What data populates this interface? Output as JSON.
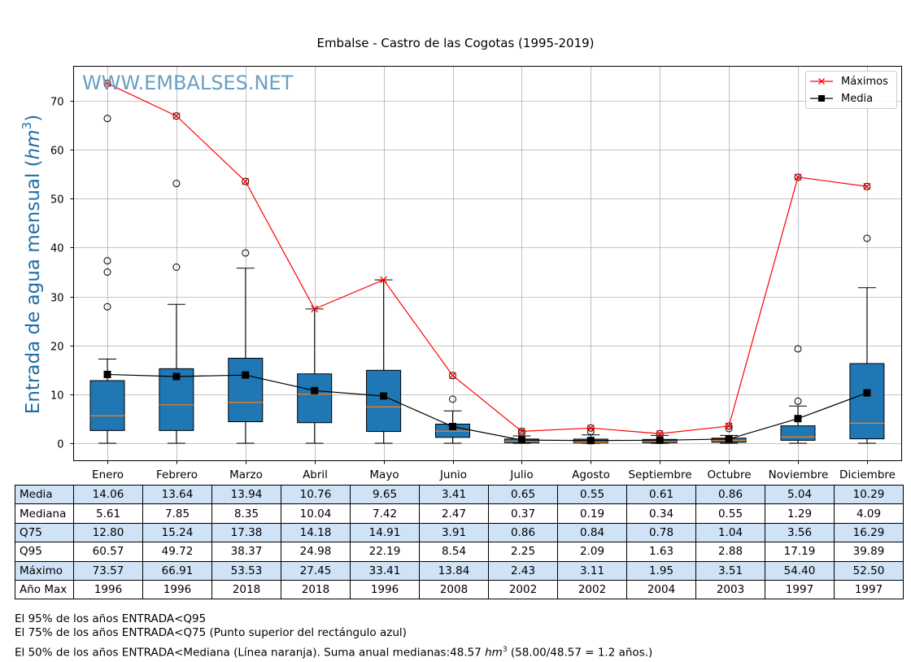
{
  "title": "Embalse - Castro de las Cogotas (1995-2019)",
  "watermark": "WWW.EMBALSES.NET",
  "colors": {
    "box_fill": "#1f77b4",
    "median_line": "#ff7f0e",
    "maximos": "#ff0000",
    "media": "#000000",
    "watermark": "#6a9fc2",
    "ylabel": "#1f6fa6",
    "table_shade": "#d0e2f5"
  },
  "chart_data": {
    "type": "box",
    "title": "Embalse - Castro de las Cogotas (1995-2019)",
    "ylabel": "Entrada de agua mensual (hm3)",
    "ylabel_text": "Entrada de agua mensual (",
    "ylabel_unit": "hm",
    "ylabel_exp": "3",
    "ylabel_close": ")",
    "ylim": [
      -3.7,
      77
    ],
    "yticks": [
      0,
      10,
      20,
      30,
      40,
      50,
      60,
      70
    ],
    "grid": true,
    "legend_position": "top-right",
    "categories": [
      "Enero",
      "Febrero",
      "Marzo",
      "Abril",
      "Mayo",
      "Junio",
      "Julio",
      "Agosto",
      "Septiembre",
      "Octubre",
      "Noviembre",
      "Diciembre"
    ],
    "legend": [
      {
        "name": "Máximos",
        "marker": "x"
      },
      {
        "name": "Media",
        "marker": "square"
      }
    ],
    "series": [
      {
        "name": "Máximos",
        "values": [
          73.57,
          66.91,
          53.53,
          27.45,
          33.41,
          13.84,
          2.43,
          3.11,
          1.95,
          3.51,
          54.4,
          52.5
        ]
      },
      {
        "name": "Media",
        "values": [
          14.06,
          13.64,
          13.94,
          10.76,
          9.65,
          3.41,
          0.65,
          0.55,
          0.61,
          0.86,
          5.04,
          10.29
        ]
      }
    ],
    "boxes": [
      {
        "q1": 2.6,
        "median": 5.61,
        "q3": 12.8,
        "whisker_low": 0,
        "whisker_high": 17.2,
        "outliers": [
          27.9,
          35.0,
          37.3,
          66.4,
          73.57
        ]
      },
      {
        "q1": 2.6,
        "median": 7.85,
        "q3": 15.24,
        "whisker_low": 0,
        "whisker_high": 28.4,
        "outliers": [
          36.0,
          53.1,
          66.91
        ]
      },
      {
        "q1": 4.4,
        "median": 8.35,
        "q3": 17.38,
        "whisker_low": 0,
        "whisker_high": 35.8,
        "outliers": [
          38.9,
          53.53
        ]
      },
      {
        "q1": 4.2,
        "median": 10.04,
        "q3": 14.18,
        "whisker_low": 0,
        "whisker_high": 27.45,
        "outliers": []
      },
      {
        "q1": 2.4,
        "median": 7.42,
        "q3": 14.91,
        "whisker_low": 0,
        "whisker_high": 33.41,
        "outliers": []
      },
      {
        "q1": 1.2,
        "median": 2.47,
        "q3": 3.91,
        "whisker_low": 0,
        "whisker_high": 6.6,
        "outliers": [
          9.0,
          13.84
        ]
      },
      {
        "q1": 0.1,
        "median": 0.37,
        "q3": 0.86,
        "whisker_low": 0,
        "whisker_high": 1.5,
        "outliers": [
          2.1,
          2.43
        ]
      },
      {
        "q1": 0.05,
        "median": 0.19,
        "q3": 0.84,
        "whisker_low": 0,
        "whisker_high": 1.7,
        "outliers": [
          2.4,
          3.11
        ]
      },
      {
        "q1": 0.1,
        "median": 0.34,
        "q3": 0.78,
        "whisker_low": 0,
        "whisker_high": 1.6,
        "outliers": [
          1.95
        ]
      },
      {
        "q1": 0.2,
        "median": 0.55,
        "q3": 1.04,
        "whisker_low": 0,
        "whisker_high": 1.6,
        "outliers": [
          3.0,
          3.51
        ]
      },
      {
        "q1": 0.6,
        "median": 1.29,
        "q3": 3.56,
        "whisker_low": 0,
        "whisker_high": 7.6,
        "outliers": [
          8.6,
          19.3,
          54.4
        ]
      },
      {
        "q1": 0.9,
        "median": 4.09,
        "q3": 16.29,
        "whisker_low": 0,
        "whisker_high": 31.8,
        "outliers": [
          41.9,
          52.5
        ]
      }
    ]
  },
  "table": {
    "rows": [
      {
        "label": "Media",
        "values": [
          "14.06",
          "13.64",
          "13.94",
          "10.76",
          "9.65",
          "3.41",
          "0.65",
          "0.55",
          "0.61",
          "0.86",
          "5.04",
          "10.29"
        ]
      },
      {
        "label": "Mediana",
        "values": [
          "5.61",
          "7.85",
          "8.35",
          "10.04",
          "7.42",
          "2.47",
          "0.37",
          "0.19",
          "0.34",
          "0.55",
          "1.29",
          "4.09"
        ]
      },
      {
        "label": "Q75",
        "values": [
          "12.80",
          "15.24",
          "17.38",
          "14.18",
          "14.91",
          "3.91",
          "0.86",
          "0.84",
          "0.78",
          "1.04",
          "3.56",
          "16.29"
        ]
      },
      {
        "label": "Q95",
        "values": [
          "60.57",
          "49.72",
          "38.37",
          "24.98",
          "22.19",
          "8.54",
          "2.25",
          "2.09",
          "1.63",
          "2.88",
          "17.19",
          "39.89"
        ]
      },
      {
        "label": "Máximo",
        "values": [
          "73.57",
          "66.91",
          "53.53",
          "27.45",
          "33.41",
          "13.84",
          "2.43",
          "3.11",
          "1.95",
          "3.51",
          "54.40",
          "52.50"
        ]
      },
      {
        "label": "Año Max",
        "values": [
          "1996",
          "1996",
          "2018",
          "2018",
          "1996",
          "2008",
          "2002",
          "2002",
          "2004",
          "2003",
          "1997",
          "1997"
        ]
      }
    ]
  },
  "notes": {
    "line1": "El 95% de los años ENTRADA<Q95",
    "line2": "El 75% de los años ENTRADA<Q75 (Punto superior del rectángulo azul)",
    "line3_a": "El 50% de los años ENTRADA<Mediana (Línea naranja). Suma anual medianas:48.57 ",
    "line3_unit": "hm",
    "line3_exp": "3",
    "line3_b": " (58.00/48.57 = 1.2 años.)"
  }
}
